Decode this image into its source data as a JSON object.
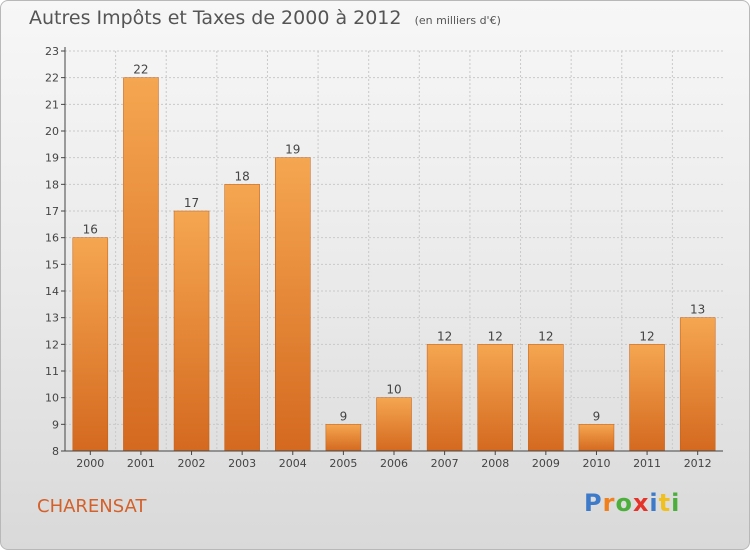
{
  "header": {
    "title": "Autres Impôts et Taxes de 2000 à 2012",
    "unit": "(en milliers d'€)"
  },
  "commune": "CHARENSAT",
  "logo": {
    "text": "Proxiti",
    "letter_colors": [
      "#3d7ac9",
      "#f07f1c",
      "#4caf3c",
      "#e5332a",
      "#3d7ac9",
      "#f0c020",
      "#4caf3c"
    ]
  },
  "colors": {
    "bar_top": "#f5a650",
    "bar_bottom": "#d4691f",
    "bar_edge": "#c05a12",
    "grid": "#c9c9c9",
    "axis": "#444444",
    "text": "#444444"
  },
  "chart_data": {
    "type": "bar",
    "categories": [
      "2000",
      "2001",
      "2002",
      "2003",
      "2004",
      "2005",
      "2006",
      "2007",
      "2008",
      "2009",
      "2010",
      "2011",
      "2012"
    ],
    "values": [
      16,
      22,
      17,
      18,
      19,
      9,
      10,
      12,
      12,
      12,
      9,
      12,
      13
    ],
    "title": "Autres Impôts et Taxes de 2000 à 2012",
    "subtitle": "(en milliers d'€)",
    "xlabel": "",
    "ylabel": "",
    "ylim": [
      8,
      23
    ],
    "yticks": [
      8,
      9,
      10,
      11,
      12,
      13,
      14,
      15,
      16,
      17,
      18,
      19,
      20,
      21,
      22,
      23
    ],
    "grid": true,
    "data_labels": true
  }
}
